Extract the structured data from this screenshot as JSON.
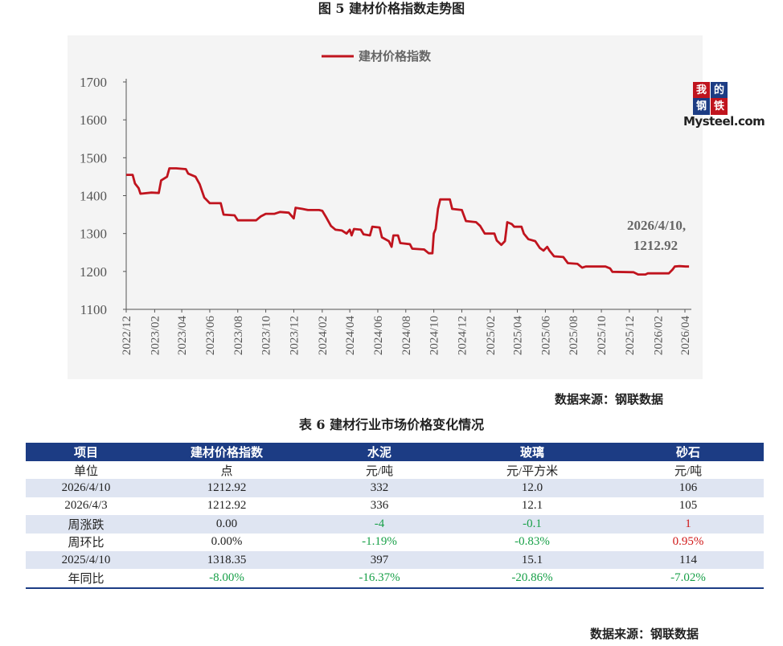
{
  "figure": {
    "title": "图 5  建材价格指数走势图"
  },
  "chart_data": {
    "type": "line",
    "title": "图 5  建材价格指数走势图",
    "series": [
      {
        "name": "建材价格指数",
        "color": "#c0141e"
      }
    ],
    "ylim": [
      1100,
      1700
    ],
    "yticks": [
      1100,
      1200,
      1300,
      1400,
      1500,
      1600,
      1700
    ],
    "xlim": [
      "2022-12",
      "2026-04-15"
    ],
    "xticks": [
      "2022/12",
      "2023/02",
      "2023/04",
      "2023/06",
      "2023/08",
      "2023/10",
      "2023/12",
      "2024/02",
      "2024/04",
      "2024/06",
      "2024/08",
      "2024/10",
      "2024/12",
      "2025/02",
      "2025/04",
      "2025/06",
      "2025/08",
      "2025/10",
      "2025/12",
      "2026/02",
      "2026/04"
    ],
    "points": [
      [
        "2022-12-01",
        1455
      ],
      [
        "2022-12-15",
        1455
      ],
      [
        "2022-12-20",
        1432
      ],
      [
        "2022-12-28",
        1420
      ],
      [
        "2023-01-01",
        1405
      ],
      [
        "2023-01-25",
        1408
      ],
      [
        "2023-02-10",
        1407
      ],
      [
        "2023-02-15",
        1440
      ],
      [
        "2023-02-28",
        1450
      ],
      [
        "2023-03-05",
        1472
      ],
      [
        "2023-03-20",
        1472
      ],
      [
        "2023-04-10",
        1470
      ],
      [
        "2023-04-15",
        1458
      ],
      [
        "2023-05-01",
        1450
      ],
      [
        "2023-05-10",
        1430
      ],
      [
        "2023-05-20",
        1395
      ],
      [
        "2023-06-01",
        1380
      ],
      [
        "2023-06-25",
        1380
      ],
      [
        "2023-07-01",
        1350
      ],
      [
        "2023-07-25",
        1348
      ],
      [
        "2023-08-01",
        1335
      ],
      [
        "2023-09-10",
        1335
      ],
      [
        "2023-09-20",
        1345
      ],
      [
        "2023-10-01",
        1352
      ],
      [
        "2023-10-20",
        1352
      ],
      [
        "2023-11-01",
        1357
      ],
      [
        "2023-11-20",
        1355
      ],
      [
        "2023-12-01",
        1340
      ],
      [
        "2023-12-05",
        1368
      ],
      [
        "2023-12-20",
        1365
      ],
      [
        "2024-01-01",
        1362
      ],
      [
        "2024-01-25",
        1362
      ],
      [
        "2024-02-01",
        1360
      ],
      [
        "2024-02-10",
        1342
      ],
      [
        "2024-02-20",
        1320
      ],
      [
        "2024-03-01",
        1310
      ],
      [
        "2024-03-15",
        1308
      ],
      [
        "2024-03-25",
        1300
      ],
      [
        "2024-04-01",
        1310
      ],
      [
        "2024-04-05",
        1295
      ],
      [
        "2024-04-10",
        1312
      ],
      [
        "2024-04-25",
        1310
      ],
      [
        "2024-05-01",
        1298
      ],
      [
        "2024-05-15",
        1295
      ],
      [
        "2024-05-20",
        1318
      ],
      [
        "2024-06-05",
        1316
      ],
      [
        "2024-06-10",
        1290
      ],
      [
        "2024-06-25",
        1280
      ],
      [
        "2024-07-01",
        1265
      ],
      [
        "2024-07-05",
        1295
      ],
      [
        "2024-07-15",
        1295
      ],
      [
        "2024-07-20",
        1275
      ],
      [
        "2024-08-10",
        1272
      ],
      [
        "2024-08-15",
        1260
      ],
      [
        "2024-09-10",
        1258
      ],
      [
        "2024-09-20",
        1248
      ],
      [
        "2024-09-28",
        1248
      ],
      [
        "2024-10-01",
        1300
      ],
      [
        "2024-10-05",
        1312
      ],
      [
        "2024-10-10",
        1365
      ],
      [
        "2024-10-15",
        1390
      ],
      [
        "2024-11-05",
        1390
      ],
      [
        "2024-11-10",
        1365
      ],
      [
        "2024-12-01",
        1362
      ],
      [
        "2024-12-10",
        1333
      ],
      [
        "2025-01-01",
        1330
      ],
      [
        "2025-01-10",
        1320
      ],
      [
        "2025-01-20",
        1300
      ],
      [
        "2025-02-10",
        1300
      ],
      [
        "2025-02-15",
        1282
      ],
      [
        "2025-02-25",
        1270
      ],
      [
        "2025-03-05",
        1280
      ],
      [
        "2025-03-10",
        1330
      ],
      [
        "2025-03-20",
        1325
      ],
      [
        "2025-03-25",
        1318
      ],
      [
        "2025-04-10",
        1318
      ],
      [
        "2025-04-15",
        1300
      ],
      [
        "2025-04-25",
        1285
      ],
      [
        "2025-05-10",
        1280
      ],
      [
        "2025-05-20",
        1262
      ],
      [
        "2025-05-28",
        1255
      ],
      [
        "2025-06-05",
        1265
      ],
      [
        "2025-06-10",
        1255
      ],
      [
        "2025-06-20",
        1240
      ],
      [
        "2025-07-10",
        1238
      ],
      [
        "2025-07-20",
        1222
      ],
      [
        "2025-08-10",
        1220
      ],
      [
        "2025-08-20",
        1210
      ],
      [
        "2025-08-28",
        1213
      ],
      [
        "2025-09-01",
        1213
      ],
      [
        "2025-10-10",
        1213
      ],
      [
        "2025-10-20",
        1208
      ],
      [
        "2025-10-25",
        1199
      ],
      [
        "2025-12-10",
        1198
      ],
      [
        "2025-12-20",
        1192
      ],
      [
        "2026-01-05",
        1192
      ],
      [
        "2026-01-10",
        1195
      ],
      [
        "2026-02-25",
        1195
      ],
      [
        "2026-03-05",
        1205
      ],
      [
        "2026-03-10",
        1212.92
      ],
      [
        "2026-03-20",
        1214
      ],
      [
        "2026-04-03",
        1212.92
      ],
      [
        "2026-04-10",
        1212.92
      ]
    ],
    "annotation": {
      "line1": "2026/4/10,",
      "line2": "1212.92",
      "date": "2026-04-10",
      "value": 1212.92
    },
    "grid": false,
    "legend_position": "top-center"
  },
  "logo": {
    "chars": [
      "我",
      "的",
      "钢",
      "铁"
    ],
    "word": "Mysteel.com",
    "colors": [
      "#c0141e",
      "#1c3c84",
      "#1c3c84",
      "#c0141e"
    ]
  },
  "source_note_1": "数据来源：钢联数据",
  "table": {
    "title": "表 6 建材行业市场价格变化情况",
    "headers": [
      "项目",
      "建材价格指数",
      "水泥",
      "玻璃",
      "砂石"
    ],
    "rows": [
      {
        "cells": [
          "单位",
          "点",
          "元/吨",
          "元/平方米",
          "元/吨"
        ],
        "tones": [
          "",
          "",
          "",
          "",
          ""
        ]
      },
      {
        "cells": [
          "2026/4/10",
          "1212.92",
          "332",
          "12.0",
          "106"
        ],
        "tones": [
          "",
          "",
          "",
          "",
          ""
        ]
      },
      {
        "cells": [
          "2026/4/3",
          "1212.92",
          "336",
          "12.1",
          "105"
        ],
        "tones": [
          "",
          "",
          "",
          "",
          ""
        ]
      },
      {
        "cells": [
          "周涨跌",
          "0.00",
          "-4",
          "-0.1",
          "1"
        ],
        "tones": [
          "",
          "",
          "neg",
          "neg",
          "pos"
        ]
      },
      {
        "cells": [
          "周环比",
          "0.00%",
          "-1.19%",
          "-0.83%",
          "0.95%"
        ],
        "tones": [
          "",
          "",
          "neg",
          "neg",
          "pos"
        ]
      },
      {
        "cells": [
          "2025/4/10",
          "1318.35",
          "397",
          "15.1",
          "114"
        ],
        "tones": [
          "",
          "",
          "",
          "",
          ""
        ]
      },
      {
        "cells": [
          "年同比",
          "-8.00%",
          "-16.37%",
          "-20.86%",
          "-7.02%"
        ],
        "tones": [
          "",
          "neg",
          "neg",
          "neg",
          "neg"
        ]
      }
    ]
  },
  "source_note_2": "数据来源：钢联数据"
}
